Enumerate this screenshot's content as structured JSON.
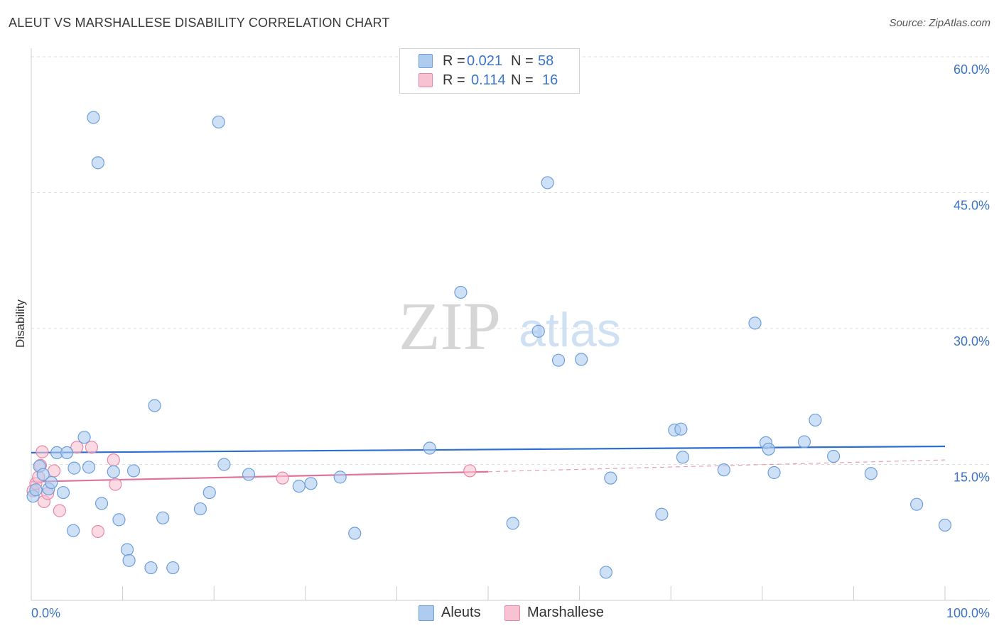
{
  "header": {
    "title": "ALEUT VS MARSHALLESE DISABILITY CORRELATION CHART",
    "source": "Source: ZipAtlas.com"
  },
  "watermark": {
    "zip": "ZIP",
    "atlas": "atlas"
  },
  "legend": {
    "items": [
      {
        "r_label": "R =",
        "r_value": "0.021",
        "n_label": "N =",
        "n_value": "58"
      },
      {
        "r_label": "R =",
        "r_value": "0.114",
        "n_label": "N =",
        "n_value": "16"
      }
    ]
  },
  "bottom_legend": {
    "aleuts": "Aleuts",
    "marshallese": "Marshallese"
  },
  "colors": {
    "aleut_fill": "#aecbf0",
    "aleut_stroke": "#6d9fdb",
    "aleut_line": "#2b6fcf",
    "marsh_fill": "#f7c3d2",
    "marsh_stroke": "#e887a6",
    "marsh_line": "#e0729b",
    "axis_label": "#3b74c9",
    "grid": "#dcdcdc"
  },
  "chart_data": {
    "type": "scatter",
    "title": "ALEUT VS MARSHALLESE DISABILITY CORRELATION CHART",
    "xlabel": "",
    "ylabel": "Disability",
    "xlim": [
      0,
      100
    ],
    "ylim": [
      0,
      60
    ],
    "x_tick_labels": [
      "0.0%",
      "100.0%"
    ],
    "y_ticks": [
      15,
      30,
      45,
      60
    ],
    "y_tick_labels": [
      "15.0%",
      "30.0%",
      "45.0%",
      "60.0%"
    ],
    "grid": true,
    "series": [
      {
        "name": "Aleuts",
        "r": 0.021,
        "n": 58,
        "trend": {
          "x": [
            0,
            100
          ],
          "y": [
            16.3,
            17.0
          ]
        },
        "points": [
          [
            0.2,
            11.5
          ],
          [
            0.5,
            12.2
          ],
          [
            0.9,
            14.8
          ],
          [
            1.3,
            13.9
          ],
          [
            1.9,
            12.3
          ],
          [
            2.2,
            13.0
          ],
          [
            2.8,
            16.3
          ],
          [
            3.5,
            11.9
          ],
          [
            3.9,
            16.3
          ],
          [
            4.6,
            7.7
          ],
          [
            4.7,
            14.6
          ],
          [
            5.8,
            18.0
          ],
          [
            6.3,
            14.7
          ],
          [
            6.8,
            53.3
          ],
          [
            7.3,
            48.3
          ],
          [
            7.7,
            10.7
          ],
          [
            9.0,
            14.2
          ],
          [
            9.6,
            8.9
          ],
          [
            10.5,
            5.6
          ],
          [
            10.7,
            4.4
          ],
          [
            11.2,
            14.3
          ],
          [
            13.1,
            3.6
          ],
          [
            13.5,
            21.5
          ],
          [
            14.4,
            9.1
          ],
          [
            15.5,
            3.6
          ],
          [
            18.5,
            10.1
          ],
          [
            19.5,
            11.9
          ],
          [
            20.5,
            52.8
          ],
          [
            21.1,
            15.0
          ],
          [
            23.8,
            13.9
          ],
          [
            29.3,
            12.6
          ],
          [
            30.6,
            12.9
          ],
          [
            33.8,
            13.6
          ],
          [
            35.4,
            7.4
          ],
          [
            43.6,
            16.8
          ],
          [
            47.0,
            34.0
          ],
          [
            52.7,
            8.5
          ],
          [
            55.5,
            29.7
          ],
          [
            56.5,
            46.1
          ],
          [
            57.7,
            26.5
          ],
          [
            60.2,
            26.6
          ],
          [
            62.9,
            3.1
          ],
          [
            63.4,
            13.5
          ],
          [
            69.0,
            9.5
          ],
          [
            70.4,
            18.8
          ],
          [
            71.1,
            18.9
          ],
          [
            71.3,
            15.8
          ],
          [
            75.8,
            14.4
          ],
          [
            79.2,
            30.6
          ],
          [
            80.4,
            17.4
          ],
          [
            80.7,
            16.7
          ],
          [
            81.3,
            14.1
          ],
          [
            84.6,
            17.5
          ],
          [
            85.8,
            19.9
          ],
          [
            87.8,
            15.9
          ],
          [
            91.9,
            14.0
          ],
          [
            96.9,
            10.6
          ],
          [
            100.0,
            8.3
          ]
        ]
      },
      {
        "name": "Marshallese",
        "r": 0.114,
        "n": 16,
        "trend": {
          "x": [
            0,
            50
          ],
          "y": [
            13.1,
            14.2
          ]
        },
        "trend_extension": {
          "x": [
            50,
            100
          ],
          "y": [
            14.2,
            15.5
          ]
        },
        "points": [
          [
            0.2,
            12.1
          ],
          [
            0.5,
            12.9
          ],
          [
            0.8,
            13.6
          ],
          [
            1.0,
            14.9
          ],
          [
            1.2,
            16.4
          ],
          [
            1.4,
            10.9
          ],
          [
            1.8,
            11.8
          ],
          [
            2.5,
            14.3
          ],
          [
            3.1,
            9.9
          ],
          [
            5.0,
            16.9
          ],
          [
            6.6,
            16.9
          ],
          [
            7.3,
            7.6
          ],
          [
            9.0,
            15.5
          ],
          [
            9.2,
            12.8
          ],
          [
            27.5,
            13.5
          ],
          [
            48.0,
            14.3
          ]
        ]
      }
    ]
  }
}
